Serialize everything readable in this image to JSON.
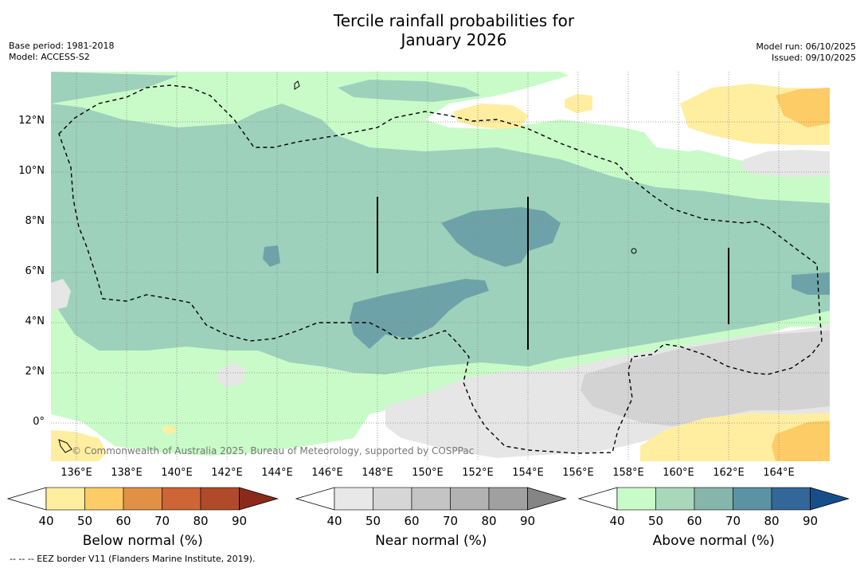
{
  "title": "Tercile rainfall probabilities for January 2026",
  "title_line1": "Tercile rainfall probabilities for",
  "title_line2": "January 2026",
  "meta_left": {
    "base_period": "Base period: 1981-2018",
    "model": "Model: ACCESS-S2"
  },
  "meta_right": {
    "model_run": "Model run: 06/10/2025",
    "issued": "Issued: 09/10/2025"
  },
  "copyright": "© Commonwealth of Australia 2025, Bureau of Meteorology, supported by COSPPac",
  "footnote": "-- -- -- EEZ border V11 (Flanders Marine Institute, 2019).",
  "map": {
    "lon_labels": [
      "136°E",
      "138°E",
      "140°E",
      "142°E",
      "144°E",
      "146°E",
      "148°E",
      "150°E",
      "152°E",
      "154°E",
      "156°E",
      "158°E",
      "160°E",
      "162°E",
      "164°E"
    ],
    "lat_labels": [
      "12°N",
      "10°N",
      "8°N",
      "6°N",
      "4°N",
      "2°N",
      "0°"
    ]
  },
  "colorbars": [
    {
      "title": "Below normal (%)",
      "ticks": [
        "40",
        "50",
        "60",
        "70",
        "80",
        "90"
      ],
      "colors": [
        "#ffeea0",
        "#fecc66",
        "#e09146",
        "#cd6534",
        "#b04a2a",
        "#8b2a1a"
      ]
    },
    {
      "title": "Near normal (%)",
      "ticks": [
        "40",
        "50",
        "60",
        "70",
        "80",
        "90"
      ],
      "colors": [
        "#e8e8e8",
        "#d6d6d6",
        "#c4c4c4",
        "#b2b2b2",
        "#a0a0a0",
        "#858585"
      ]
    },
    {
      "title": "Above normal (%)",
      "ticks": [
        "40",
        "50",
        "60",
        "70",
        "80",
        "90"
      ],
      "colors": [
        "#c9fbc9",
        "#a8d8b9",
        "#86b6ab",
        "#5b93a3",
        "#336699",
        "#164e8c"
      ]
    }
  ],
  "colors": {
    "above_40": "#c9fbc9",
    "above_50": "#9dd1bc",
    "above_60": "#6da3a8",
    "near_40": "#e6e6e6",
    "near_50": "#d3d3d3",
    "below_40": "#ffeea0",
    "below_50": "#fecc66"
  }
}
